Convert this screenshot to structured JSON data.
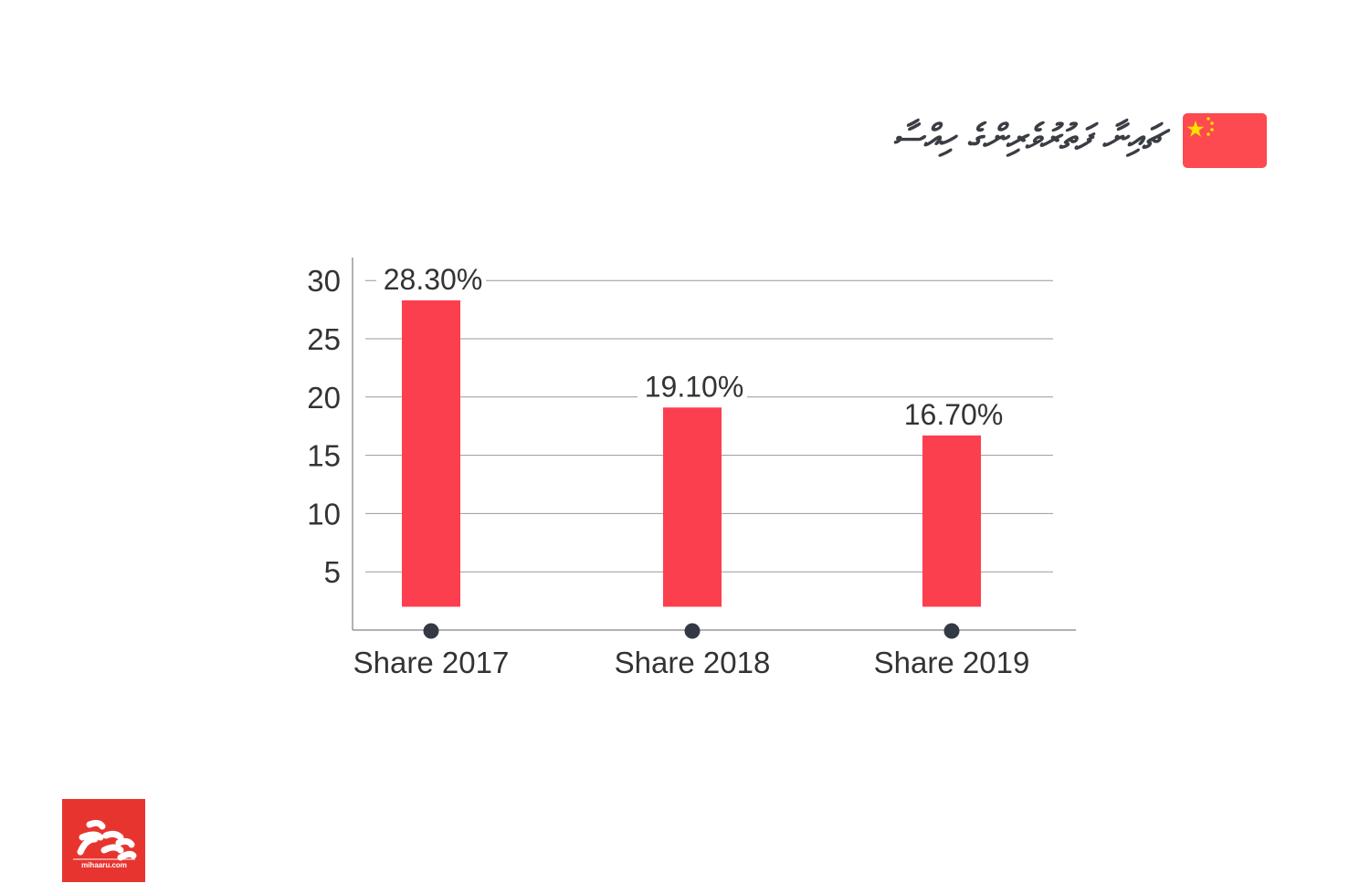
{
  "header": {
    "title": "ޗައިނާ ފަތުރުވެރިންގެ ހިއްސާ",
    "flag_icon": "china-flag-icon"
  },
  "logo": {
    "text": "mihaaru.com",
    "color": "#e8342f"
  },
  "chart_data": {
    "type": "bar",
    "title": "ޗައިނާ ފަތުރުވެރިންގެ ހިއްސާ",
    "categories": [
      "Share 2017",
      "Share 2018",
      "Share 2019"
    ],
    "values": [
      28.3,
      19.1,
      16.7
    ],
    "data_labels": [
      "28.30%",
      "19.10%",
      "16.70%"
    ],
    "yticks": [
      "5",
      "10",
      "15",
      "20",
      "25",
      "30"
    ],
    "ylim": [
      0,
      30
    ],
    "grid": true,
    "xlabel": "",
    "ylabel": "",
    "bar_color": "#fc3f4f"
  }
}
